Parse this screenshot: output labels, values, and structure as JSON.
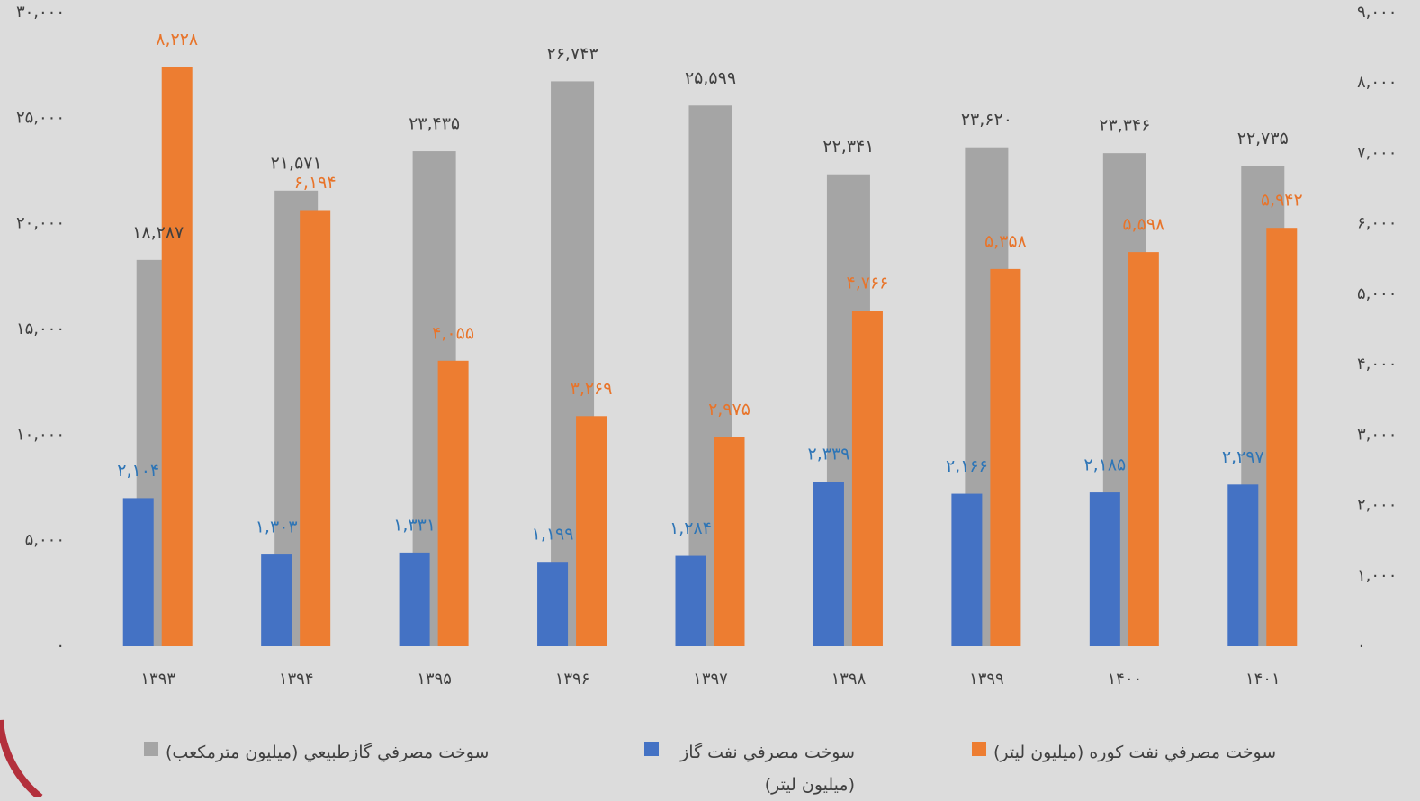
{
  "chart_data": {
    "type": "bar",
    "categories": [
      "۱۳۹۳",
      "۱۳۹۴",
      "۱۳۹۵",
      "۱۳۹۶",
      "۱۳۹۷",
      "۱۳۹۸",
      "۱۳۹۹",
      "۱۴۰۰",
      "۱۴۰۱"
    ],
    "series": [
      {
        "name": "سوخت مصرفي گازطبيعي  (ميليون مترمكعب)",
        "color": "#a5a5a5",
        "axis": "y",
        "values": [
          18287,
          21571,
          23435,
          26743,
          25599,
          22341,
          23620,
          23346,
          22735
        ],
        "value_labels": [
          "۱۸,۲۸۷",
          "۲۱,۵۷۱",
          "۲۳,۴۳۵",
          "۲۶,۷۴۳",
          "۲۵,۵۹۹",
          "۲۲,۳۴۱",
          "۲۳,۶۲۰",
          "۲۳,۳۴۶",
          "۲۲,۷۳۵"
        ]
      },
      {
        "name": "سوخت مصرفي نفت گاز (ميليون ليتر)",
        "color": "#4472c4",
        "axis": "y2",
        "values": [
          2104,
          1303,
          1331,
          1199,
          1284,
          2339,
          2166,
          2185,
          2297
        ],
        "value_labels": [
          "۲,۱۰۴",
          "۱,۳۰۳",
          "۱,۳۳۱",
          "۱,۱۹۹",
          "۱,۲۸۴",
          "۲,۳۳۹",
          "۲,۱۶۶",
          "۲,۱۸۵",
          "۲,۲۹۷"
        ]
      },
      {
        "name": "سوخت مصرفي نفت كوره (ميليون ليتر)",
        "color": "#ed7d31",
        "axis": "y2",
        "values": [
          8228,
          6194,
          4055,
          3269,
          2975,
          4766,
          5358,
          5598,
          5942
        ],
        "value_labels": [
          "۸,۲۲۸",
          "۶,۱۹۴",
          "۴,۰۵۵",
          "۳,۲۶۹",
          "۲,۹۷۵",
          "۴,۷۶۶",
          "۵,۳۵۸",
          "۵,۵۹۸",
          "۵,۹۴۲"
        ]
      }
    ],
    "ylim": [
      0,
      30000
    ],
    "yticks": [
      {
        "value": 0,
        "label": "۰"
      },
      {
        "value": 5000,
        "label": "۵,۰۰۰"
      },
      {
        "value": 10000,
        "label": "۱۰,۰۰۰"
      },
      {
        "value": 15000,
        "label": "۱۵,۰۰۰"
      },
      {
        "value": 20000,
        "label": "۲۰,۰۰۰"
      },
      {
        "value": 25000,
        "label": "۲۵,۰۰۰"
      },
      {
        "value": 30000,
        "label": "۳۰,۰۰۰"
      }
    ],
    "y2lim": [
      0,
      9000
    ],
    "y2ticks": [
      {
        "value": 0,
        "label": "۰"
      },
      {
        "value": 1000,
        "label": "۱,۰۰۰"
      },
      {
        "value": 2000,
        "label": "۲,۰۰۰"
      },
      {
        "value": 3000,
        "label": "۳,۰۰۰"
      },
      {
        "value": 4000,
        "label": "۴,۰۰۰"
      },
      {
        "value": 5000,
        "label": "۵,۰۰۰"
      },
      {
        "value": 6000,
        "label": "۶,۰۰۰"
      },
      {
        "value": 7000,
        "label": "۷,۰۰۰"
      },
      {
        "value": 8000,
        "label": "۸,۰۰۰"
      },
      {
        "value": 9000,
        "label": "۹,۰۰۰"
      }
    ],
    "grid": false,
    "legend": "bottom"
  }
}
